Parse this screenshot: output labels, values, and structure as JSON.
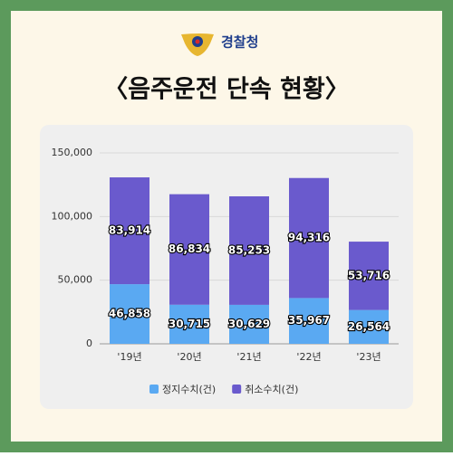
{
  "header": {
    "logo_text": "경찰청",
    "title": "〈음주운전 단속 현황〉"
  },
  "chart_data": {
    "type": "bar",
    "stacked": true,
    "categories": [
      "'19년",
      "'20년",
      "'21년",
      "'22년",
      "'23년"
    ],
    "series": [
      {
        "name": "정지수치(건)",
        "color": "#5aa9f2",
        "values": [
          46858,
          30715,
          30629,
          35967,
          26564
        ],
        "value_labels": [
          "46,858",
          "30,715",
          "30,629",
          "35,967",
          "26,564"
        ]
      },
      {
        "name": "취소수치(건)",
        "color": "#6a5acd",
        "values": [
          83914,
          86834,
          85253,
          94316,
          53716
        ],
        "value_labels": [
          "83,914",
          "86,834",
          "85,253",
          "94,316",
          "53,716"
        ]
      }
    ],
    "ylim": [
      0,
      150000
    ],
    "yticks": [
      0,
      {
        "value": 50000,
        "label": "50,000"
      },
      {
        "value": 100000,
        "label": "100,000"
      },
      {
        "value": 150000,
        "label": "150,000"
      }
    ],
    "grid": true,
    "legend": "bottom"
  }
}
